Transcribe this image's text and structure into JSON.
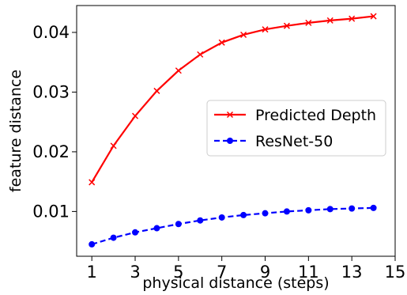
{
  "chart_data": {
    "type": "line",
    "title": "",
    "xlabel": "physical distance (steps)",
    "ylabel": "feature distance",
    "xlim": [
      0.3,
      15.0
    ],
    "ylim": [
      0.0025,
      0.0445
    ],
    "xticks": [
      1,
      3,
      5,
      7,
      9,
      11,
      13,
      15
    ],
    "xtick_labels": [
      "1",
      "3",
      "5",
      "7",
      "9",
      "11",
      "13",
      "15"
    ],
    "yticks": [
      0.01,
      0.02,
      0.03,
      0.04
    ],
    "ytick_labels": [
      "0.01",
      "0.02",
      "0.03",
      "0.04"
    ],
    "grid": false,
    "legend_position": "right",
    "x": [
      1,
      2,
      3,
      4,
      5,
      6,
      7,
      8,
      9,
      10,
      11,
      12,
      13,
      14
    ],
    "series": [
      {
        "name": "Predicted Depth",
        "color": "#ff0000",
        "line_style": "solid",
        "marker": "x",
        "values": [
          0.0149,
          0.021,
          0.026,
          0.0302,
          0.0336,
          0.0363,
          0.0383,
          0.0396,
          0.0405,
          0.0411,
          0.0416,
          0.042,
          0.0423,
          0.0427
        ]
      },
      {
        "name": "ResNet-50",
        "color": "#0000ff",
        "line_style": "dashed",
        "marker": "circle",
        "values": [
          0.0045,
          0.0056,
          0.0065,
          0.0072,
          0.0079,
          0.0085,
          0.009,
          0.0094,
          0.0097,
          0.01,
          0.0102,
          0.0104,
          0.0105,
          0.0106
        ]
      }
    ]
  }
}
